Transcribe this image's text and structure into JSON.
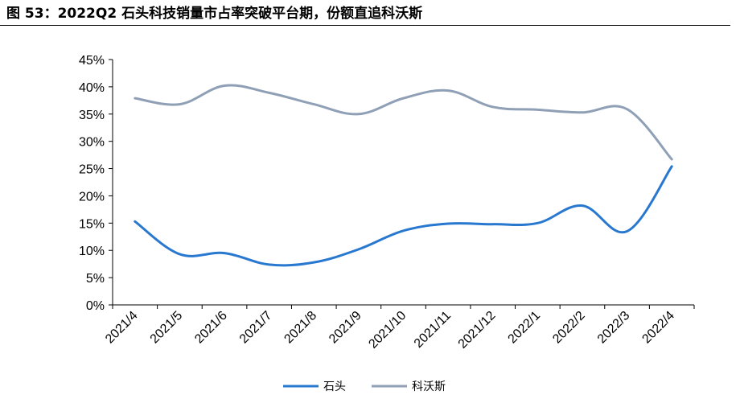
{
  "figure": {
    "title": "图 53：2022Q2 石头科技销量市占率突破平台期，份额直追科沃斯"
  },
  "chart_data": {
    "type": "line",
    "categories": [
      "2021/4",
      "2021/5",
      "2021/6",
      "2021/7",
      "2021/8",
      "2021/9",
      "2021/10",
      "2021/11",
      "2021/12",
      "2022/1",
      "2022/2",
      "2022/3",
      "2022/4"
    ],
    "series": [
      {
        "name": "石头",
        "color": "#2878D0",
        "values": [
          15.3,
          9.3,
          9.5,
          7.4,
          7.8,
          10.2,
          13.6,
          14.9,
          14.8,
          15.0,
          18.2,
          13.5,
          25.4
        ]
      },
      {
        "name": "科沃斯",
        "color": "#8FA0B6",
        "values": [
          37.9,
          36.8,
          40.2,
          38.9,
          36.8,
          35.0,
          37.9,
          39.3,
          36.3,
          35.8,
          35.3,
          35.9,
          26.7
        ]
      }
    ],
    "y_ticks": [
      "0%",
      "5%",
      "10%",
      "15%",
      "20%",
      "25%",
      "30%",
      "35%",
      "40%",
      "45%"
    ],
    "ylim": [
      0,
      45
    ],
    "y_unit": "%",
    "grid": false,
    "smooth": true,
    "legend_position": "bottom-center"
  }
}
